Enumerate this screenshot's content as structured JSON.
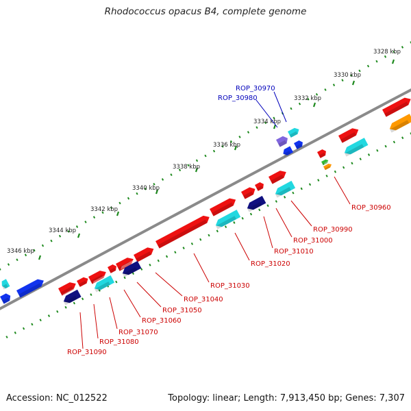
{
  "title": "Rhodococcus opacus B4, complete genome",
  "accession": "Accession: NC_012522",
  "summary": "Topology: linear; Length: 7,913,450 bp; Genes: 7,307",
  "colors": {
    "backbone": "#8a8a8a",
    "ticks": "#1e8a1e",
    "forward_gene": "#ee1111",
    "reverse_gene": "#22d8e0",
    "blue_gene": "#1133ee",
    "navy_gene": "#101080",
    "purple_gene": "#8066dd",
    "orange_gene": "#ff9900",
    "green_gene": "#33bb33",
    "red_label": "#cc0000",
    "blue_label": "#0000bb"
  },
  "scale_labels": [
    "3328 kbp",
    "3330 kbp",
    "3332 kbp",
    "3334 kbp",
    "3336 kbp",
    "3338 kbp",
    "3340 kbp",
    "3342 kbp",
    "3344 kbp",
    "3346 kbp"
  ],
  "gene_labels": [
    {
      "name": "ROP_30970",
      "color": "blue"
    },
    {
      "name": "ROP_30980",
      "color": "blue"
    },
    {
      "name": "ROP_30960",
      "color": "red"
    },
    {
      "name": "ROP_30990",
      "color": "red"
    },
    {
      "name": "ROP_31000",
      "color": "red"
    },
    {
      "name": "ROP_31010",
      "color": "red"
    },
    {
      "name": "ROP_31020",
      "color": "red"
    },
    {
      "name": "ROP_31030",
      "color": "red"
    },
    {
      "name": "ROP_31040",
      "color": "red"
    },
    {
      "name": "ROP_31050",
      "color": "red"
    },
    {
      "name": "ROP_31060",
      "color": "red"
    },
    {
      "name": "ROP_31070",
      "color": "red"
    },
    {
      "name": "ROP_31080",
      "color": "red"
    },
    {
      "name": "ROP_31090",
      "color": "red"
    }
  ]
}
